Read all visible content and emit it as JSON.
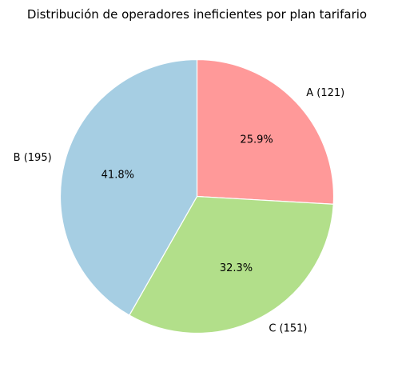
{
  "chart_data": {
    "type": "pie",
    "title": "Distribución de operadores ineficientes por plan tarifario",
    "slices": [
      {
        "label": "A (121)",
        "category": "A",
        "value": 121,
        "percent_label": "25.9%",
        "color": "#ff9999"
      },
      {
        "label": "C (151)",
        "category": "C",
        "value": 151,
        "percent_label": "32.3%",
        "color": "#b2df8a"
      },
      {
        "label": "B (195)",
        "category": "B",
        "value": 195,
        "percent_label": "41.8%",
        "color": "#a6cee3"
      }
    ],
    "start_angle_deg": 90,
    "direction": "clockwise",
    "legend": "none",
    "edge_color": "#ffffff"
  }
}
